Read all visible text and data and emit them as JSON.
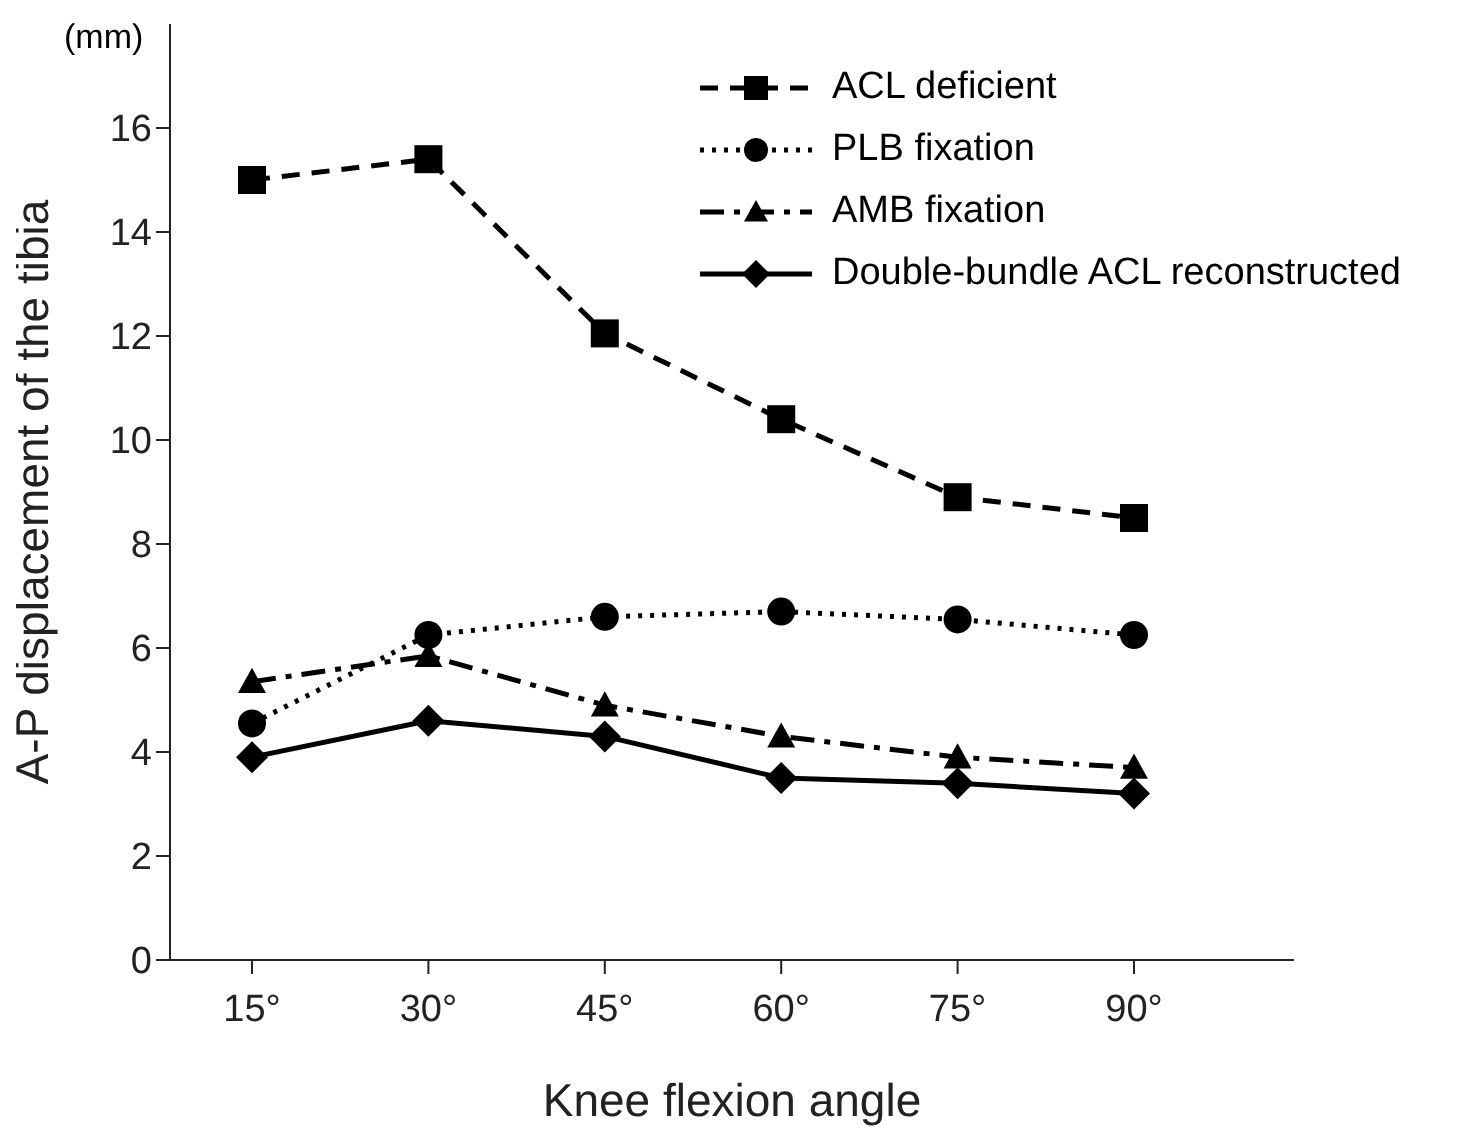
{
  "chart_data": {
    "type": "line",
    "xlabel": "Knee flexion angle",
    "ylabel": "A-P displacement of the tibia",
    "annotations": [
      "(mm)"
    ],
    "categories": [
      "15°",
      "30°",
      "45°",
      "60°",
      "75°",
      "90°"
    ],
    "series": [
      {
        "name": "ACL deficient",
        "color": "#000000",
        "marker": "square",
        "line_style": "dashed",
        "values": [
          15.0,
          15.4,
          12.05,
          10.4,
          8.9,
          8.5
        ]
      },
      {
        "name": "PLB fixation",
        "color": "#000000",
        "marker": "circle",
        "line_style": "dotted",
        "values": [
          4.55,
          6.25,
          6.6,
          6.7,
          6.55,
          6.25
        ]
      },
      {
        "name": "AMB fixation",
        "color": "#000000",
        "marker": "triangle",
        "line_style": "dashdot",
        "values": [
          5.35,
          5.85,
          4.9,
          4.3,
          3.9,
          3.7
        ]
      },
      {
        "name": "Double-bundle ACL reconstructed",
        "color": "#000000",
        "marker": "diamond",
        "line_style": "solid",
        "values": [
          3.9,
          4.6,
          4.3,
          3.5,
          3.4,
          3.2
        ]
      }
    ],
    "ylim": [
      0,
      18
    ],
    "yticks": [
      0,
      2,
      4,
      6,
      8,
      10,
      12,
      14,
      16
    ],
    "grid": false,
    "legend": "top right"
  }
}
